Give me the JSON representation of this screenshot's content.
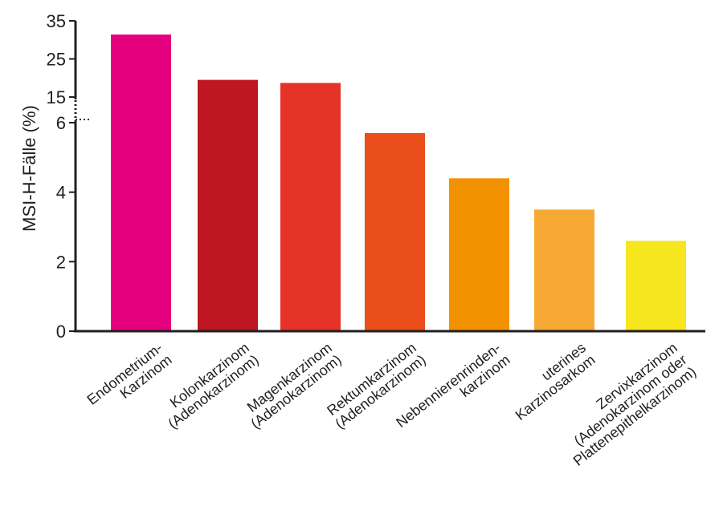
{
  "chart_data": {
    "type": "bar",
    "ylabel": "MSI-H-Fälle (%)",
    "xlabel": "",
    "title": "",
    "y_axis": {
      "lower_range": [
        0,
        6
      ],
      "upper_range": [
        15,
        35
      ],
      "broken": true,
      "ticks": [
        0,
        2,
        4,
        6,
        15,
        25,
        35
      ],
      "tick_labels": [
        "0",
        "2",
        "4",
        "6",
        "15",
        "25",
        "35"
      ]
    },
    "categories": [
      [
        "Endometrium-",
        "Karzinom"
      ],
      [
        "Kolonkarzinom",
        "(Adenokarzinom)"
      ],
      [
        "Magenkarzinom",
        "(Adenokarzinom)"
      ],
      [
        "Rektumkarzinom",
        "(Adenokarzinom)"
      ],
      [
        "Nebennierenrinden-",
        "karzinom"
      ],
      [
        "uterines",
        "Karzinosarkom"
      ],
      [
        "Zervixkarzinom",
        "(Adenokarzinom oder",
        "Plattenepithelkarzinom)"
      ]
    ],
    "values": [
      31.4,
      19.5,
      18.7,
      5.7,
      4.4,
      3.5,
      2.6
    ],
    "colors": [
      "#e5007d",
      "#be1622",
      "#e5332a",
      "#e94e1b",
      "#f39200",
      "#f7aa33",
      "#f6e61e"
    ],
    "grid": false,
    "legend": "none"
  }
}
